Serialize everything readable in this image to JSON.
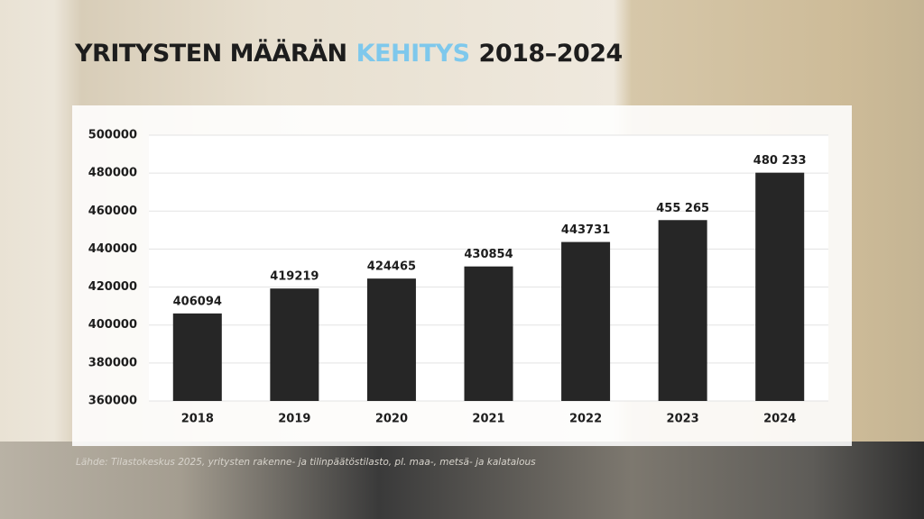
{
  "chart_data": {
    "type": "bar",
    "title": [
      "YRITYSTEN MÄÄRÄN",
      "KEHITYS",
      "2018–2024"
    ],
    "title_highlight": 1,
    "title_highlight_color": "#7ec8ec",
    "categories": [
      "2018",
      "2019",
      "2020",
      "2021",
      "2022",
      "2023",
      "2024"
    ],
    "values": [
      406094,
      419219,
      424465,
      430854,
      443731,
      455265,
      480233
    ],
    "value_labels": [
      "406094",
      "419219",
      "424465",
      "430854",
      "443731",
      "455 265",
      "480 233"
    ],
    "color": "#262626",
    "ylim": [
      360000,
      500000
    ],
    "yticks": [
      360000,
      380000,
      400000,
      420000,
      440000,
      460000,
      480000,
      500000
    ],
    "grid": true,
    "source": "Lähde: Tilastokeskus 2025, yritysten rakenne- ja tilinpäätöstilasto, pl. maa-, metsä- ja kalatalous"
  }
}
